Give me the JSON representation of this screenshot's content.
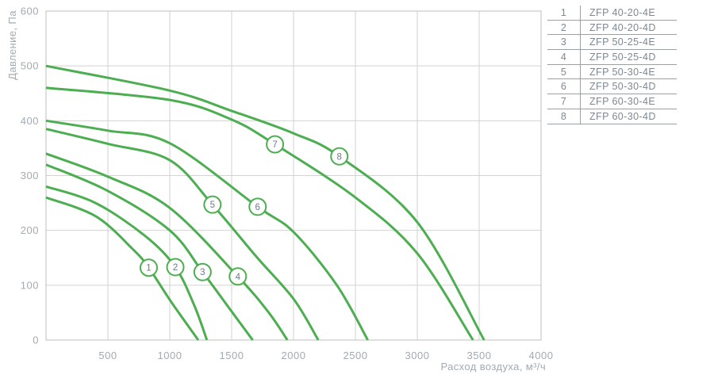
{
  "axis": {
    "y_title": "Давление, Па",
    "x_title": "Расход воздуха, м³/ч"
  },
  "colors": {
    "curve_green": "#4cae50",
    "grid": "#d2d2d2",
    "plot_border": "#bfbfbf",
    "tick_text": "#a3aab0",
    "circle_number_text": "#6b7a89",
    "legend_line": "#99a1a7",
    "legend_text": "#7e8890"
  },
  "chart_data": {
    "type": "line",
    "title": "",
    "xlabel": "Расход воздуха, м³/ч",
    "ylabel": "Давление, Па",
    "xlim": [
      0,
      4000
    ],
    "ylim": [
      0,
      600
    ],
    "x_ticks": [
      500,
      1000,
      1500,
      2000,
      2500,
      3000,
      3500,
      4000
    ],
    "y_ticks": [
      0,
      100,
      200,
      300,
      400,
      500,
      600
    ],
    "grid": true,
    "legend_position": "right-table",
    "line_color": "#4cae50",
    "series": [
      {
        "id": "1",
        "name": "ZFP 40-20-4E",
        "label_point": [
          830,
          132
        ],
        "points": [
          [
            0,
            260
          ],
          [
            400,
            226
          ],
          [
            700,
            166
          ],
          [
            830,
            132
          ],
          [
            1010,
            70
          ],
          [
            1230,
            0
          ]
        ]
      },
      {
        "id": "2",
        "name": "ZFP 40-20-4D",
        "label_point": [
          1045,
          133
        ],
        "points": [
          [
            0,
            280
          ],
          [
            400,
            250
          ],
          [
            800,
            190
          ],
          [
            1045,
            133
          ],
          [
            1200,
            62
          ],
          [
            1300,
            0
          ]
        ]
      },
      {
        "id": "3",
        "name": "ZFP 50-25-4E",
        "label_point": [
          1265,
          124
        ],
        "points": [
          [
            0,
            320
          ],
          [
            500,
            272
          ],
          [
            1000,
            200
          ],
          [
            1265,
            124
          ],
          [
            1500,
            52
          ],
          [
            1670,
            0
          ]
        ]
      },
      {
        "id": "4",
        "name": "ZFP 50-25-4D",
        "label_point": [
          1550,
          116
        ],
        "points": [
          [
            0,
            340
          ],
          [
            500,
            298
          ],
          [
            1000,
            241
          ],
          [
            1550,
            116
          ],
          [
            1800,
            50
          ],
          [
            1950,
            0
          ]
        ]
      },
      {
        "id": "5",
        "name": "ZFP 50-30-4E",
        "label_point": [
          1345,
          247
        ],
        "points": [
          [
            0,
            385
          ],
          [
            500,
            358
          ],
          [
            1000,
            328
          ],
          [
            1345,
            247
          ],
          [
            1700,
            152
          ],
          [
            2000,
            75
          ],
          [
            2200,
            0
          ]
        ]
      },
      {
        "id": "6",
        "name": "ZFP 50-30-4D",
        "label_point": [
          1710,
          243
        ],
        "points": [
          [
            0,
            400
          ],
          [
            500,
            382
          ],
          [
            1000,
            359
          ],
          [
            1710,
            243
          ],
          [
            2000,
            197
          ],
          [
            2350,
            100
          ],
          [
            2600,
            0
          ]
        ]
      },
      {
        "id": "7",
        "name": "ZFP 60-30-4E",
        "label_point": [
          1850,
          357
        ],
        "points": [
          [
            0,
            460
          ],
          [
            1000,
            438
          ],
          [
            1500,
            402
          ],
          [
            1850,
            357
          ],
          [
            2500,
            260
          ],
          [
            3000,
            158
          ],
          [
            3450,
            0
          ]
        ]
      },
      {
        "id": "8",
        "name": "ZFP 60-30-4D",
        "label_point": [
          2370,
          335
        ],
        "points": [
          [
            0,
            500
          ],
          [
            1000,
            455
          ],
          [
            1500,
            418
          ],
          [
            2000,
            377
          ],
          [
            2370,
            335
          ],
          [
            3000,
            215
          ],
          [
            3540,
            0
          ]
        ]
      }
    ]
  }
}
